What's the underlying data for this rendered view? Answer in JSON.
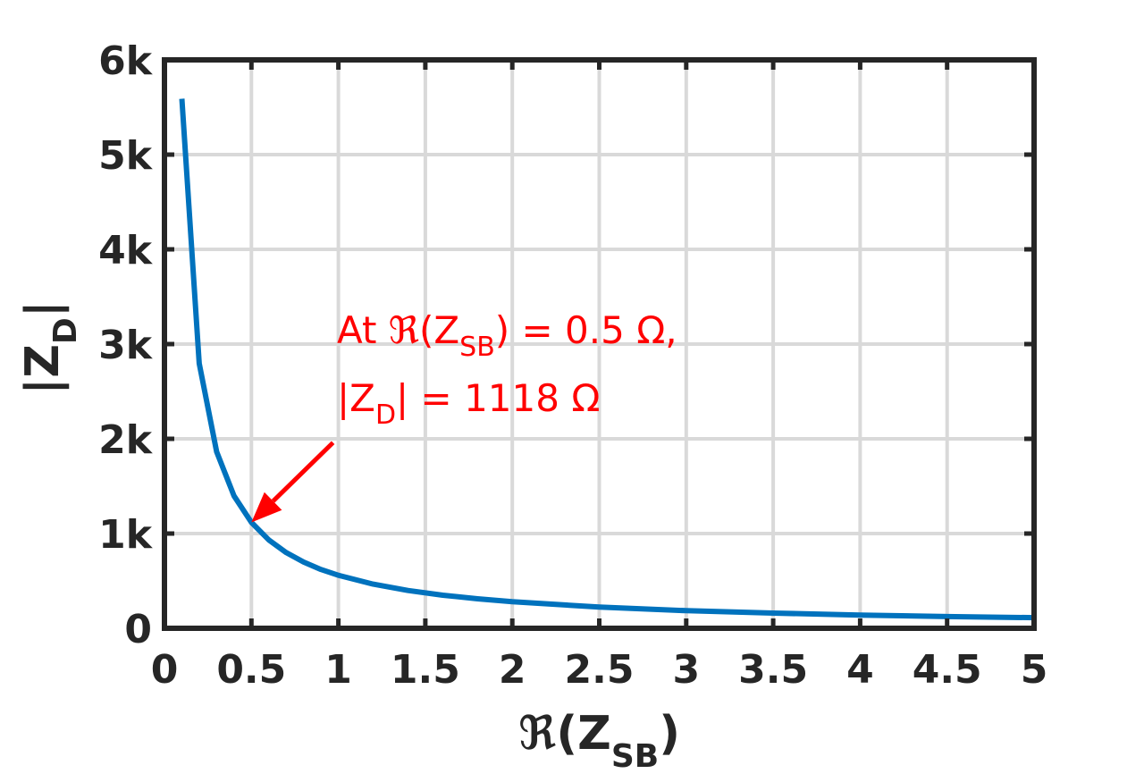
{
  "colors": {
    "line": "#0072BD",
    "annotation": "#FF0000",
    "axis": "#262626",
    "grid": "#D9D9D9"
  },
  "chart_data": {
    "type": "line",
    "grid": true,
    "xlim": [
      0,
      5
    ],
    "ylim": [
      0,
      6000
    ],
    "xticks": [
      0,
      0.5,
      1,
      1.5,
      2,
      2.5,
      3,
      3.5,
      4,
      4.5,
      5
    ],
    "xtick_labels": [
      "0",
      "0.5",
      "1",
      "1.5",
      "2",
      "2.5",
      "3",
      "3.5",
      "4",
      "4.5",
      "5"
    ],
    "yticks": [
      0,
      1000,
      2000,
      3000,
      4000,
      5000,
      6000
    ],
    "ytick_labels": [
      "0",
      "1k",
      "2k",
      "3k",
      "4k",
      "5k",
      "6k"
    ],
    "xlabel": {
      "main": "ℜ(Z",
      "sub": "SB",
      "end": ")"
    },
    "ylabel": {
      "main": "|Z",
      "sub": "D",
      "end": "|"
    },
    "series": [
      {
        "x": [
          0.1,
          0.2,
          0.3,
          0.4,
          0.5,
          0.6,
          0.7,
          0.8,
          0.9,
          1.0,
          1.2,
          1.4,
          1.6,
          1.8,
          2.0,
          2.5,
          3.0,
          3.5,
          4.0,
          4.5,
          5.0
        ],
        "y": [
          5590,
          2795,
          1863,
          1398,
          1118,
          932,
          799,
          699,
          621,
          559,
          466,
          399,
          349,
          311,
          280,
          224,
          186,
          160,
          140,
          124,
          112
        ]
      }
    ],
    "annotation": {
      "line1": {
        "pre": "At ℜ(Z",
        "sub": "SB",
        "post": ") = 0.5 Ω,"
      },
      "line2": {
        "pre": "|Z",
        "sub": "D",
        "post": "| = 1118 Ω"
      },
      "point": {
        "x": 0.5,
        "y": 1118
      },
      "tail": {
        "x": 1.0,
        "y": 1960
      }
    }
  }
}
